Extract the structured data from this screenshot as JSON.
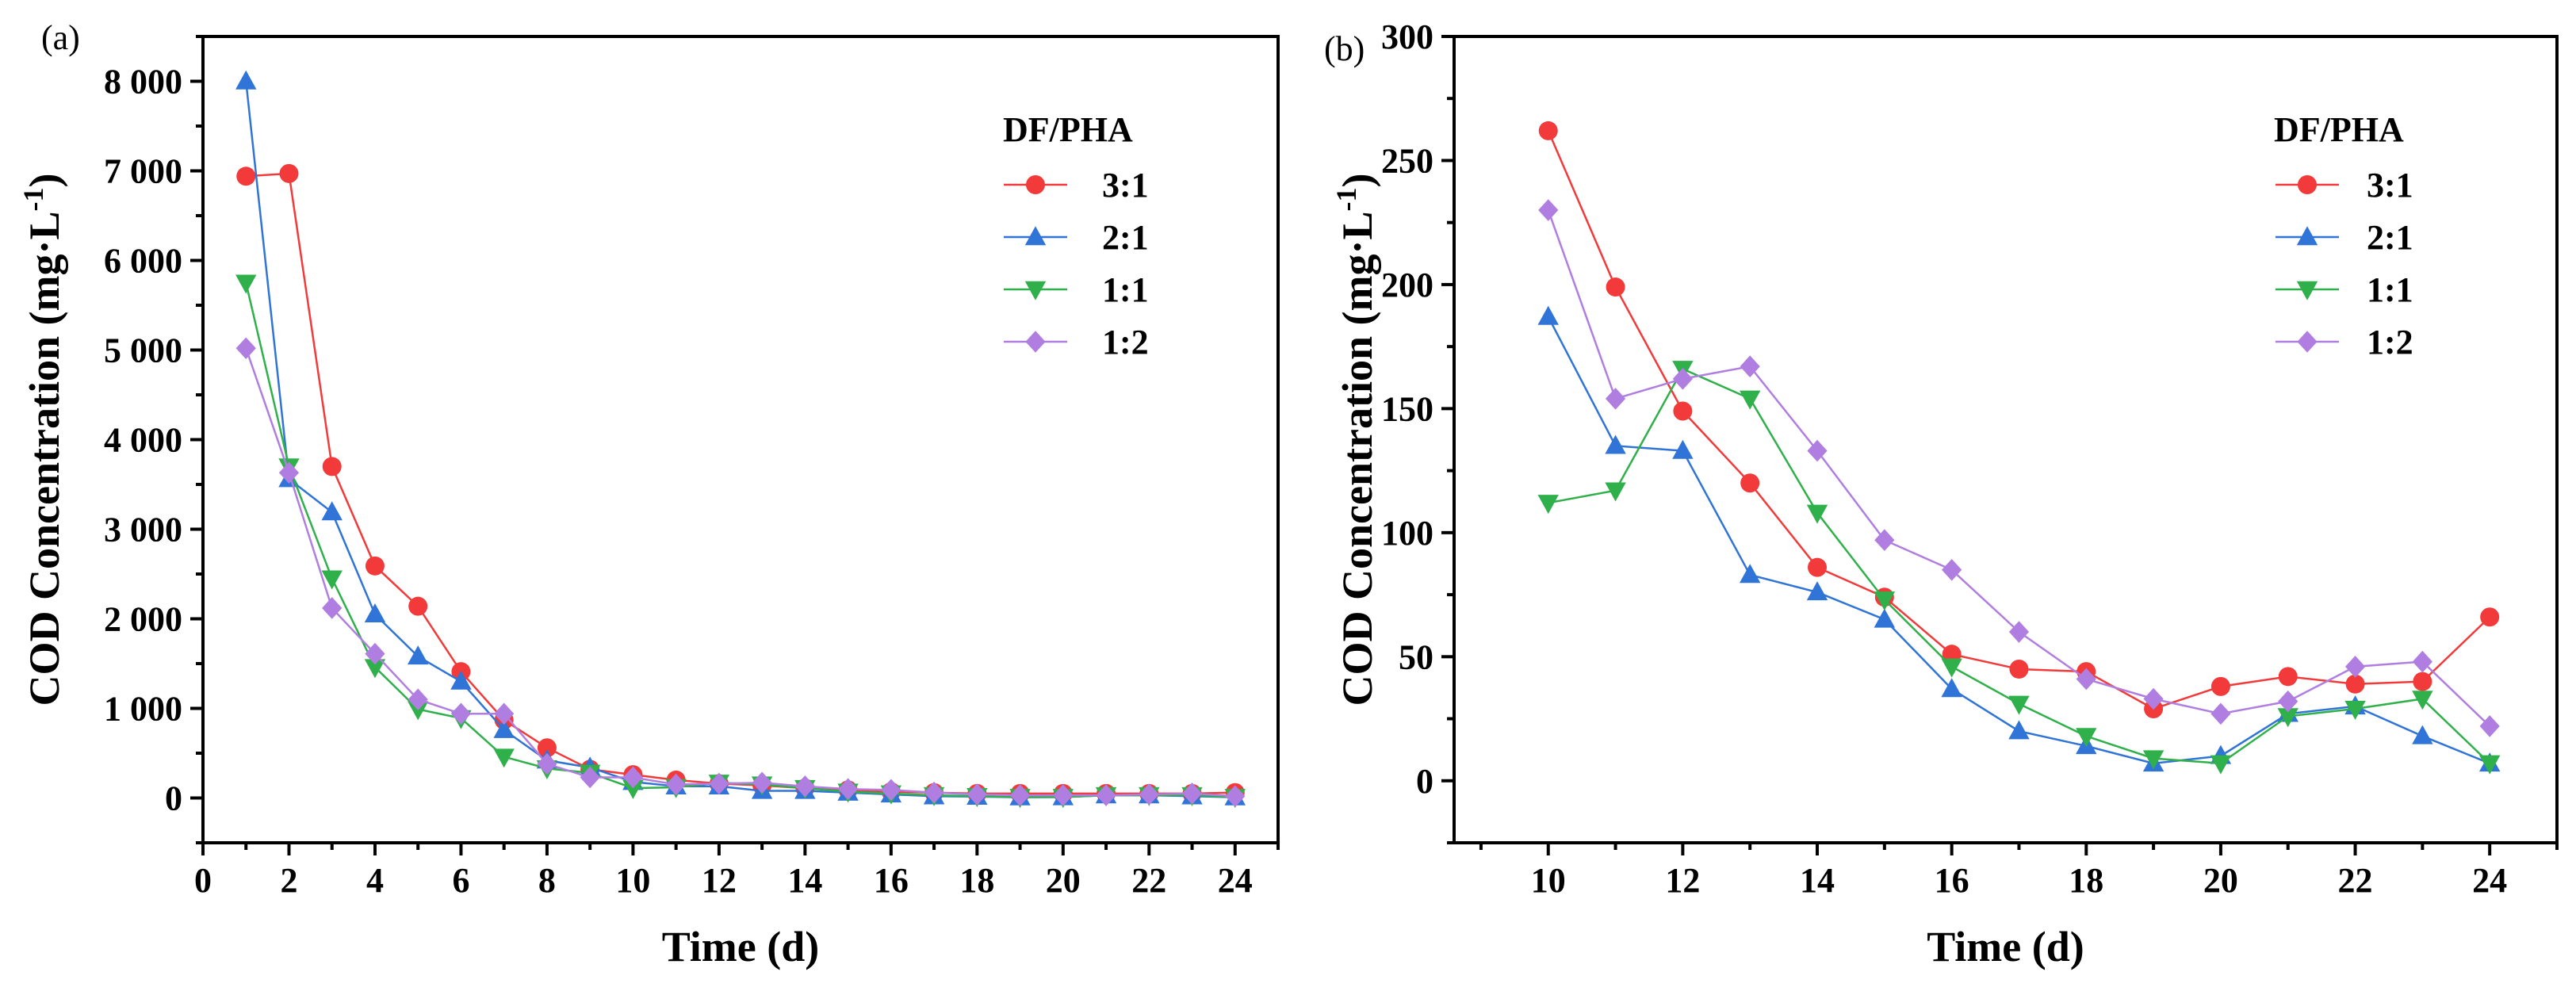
{
  "chart_data": [
    {
      "panel_label": "(a)",
      "type": "line",
      "xlabel": "Time (d)",
      "ylabel": "COD Concentration (mg·L",
      "ylabel_sup": "-1",
      "ylabel_close": ")",
      "xlim": [
        0,
        25
      ],
      "ylim": [
        -500,
        8500
      ],
      "xticks": [
        0,
        2,
        4,
        6,
        8,
        10,
        12,
        14,
        16,
        18,
        20,
        22,
        24
      ],
      "xtick_labels": [
        "0",
        "2",
        "4",
        "6",
        "8",
        "10",
        "12",
        "14",
        "16",
        "18",
        "20",
        "22",
        "24"
      ],
      "yticks": [
        0,
        1000,
        2000,
        3000,
        4000,
        5000,
        6000,
        7000,
        8000
      ],
      "ytick_labels": [
        "0",
        "1 000",
        "2 000",
        "3 000",
        "4 000",
        "5 000",
        "6 000",
        "7 000",
        "8 000"
      ],
      "legend_title": "DF/PHA",
      "legend_position": "top-right",
      "grid": false,
      "x": [
        1,
        2,
        3,
        4,
        5,
        6,
        7,
        8,
        9,
        10,
        11,
        12,
        13,
        14,
        15,
        16,
        17,
        18,
        19,
        20,
        21,
        22,
        23,
        24
      ],
      "series": [
        {
          "name": "3:1",
          "color": "#f23a3a",
          "marker": "circle",
          "values": [
            6940,
            6970,
            3700,
            2590,
            2140,
            1410,
            870,
            560,
            320,
            260,
            200,
            160,
            140,
            110,
            90,
            70,
            60,
            50,
            50,
            50,
            50,
            50,
            50,
            60
          ]
        },
        {
          "name": "2:1",
          "color": "#2f74d6",
          "marker": "triangle-up",
          "values": [
            8000,
            3560,
            3190,
            2050,
            1580,
            1300,
            760,
            420,
            340,
            180,
            130,
            130,
            80,
            80,
            60,
            40,
            20,
            15,
            8,
            10,
            30,
            30,
            20,
            8
          ]
        },
        {
          "name": "1:1",
          "color": "#2fb04a",
          "marker": "triangle-down",
          "values": [
            5750,
            3700,
            2450,
            1460,
            990,
            890,
            460,
            330,
            280,
            110,
            120,
            170,
            150,
            110,
            70,
            50,
            30,
            20,
            10,
            10,
            30,
            30,
            30,
            10
          ]
        },
        {
          "name": "1:2",
          "color": "#b07ee0",
          "marker": "diamond",
          "values": [
            5020,
            3630,
            2120,
            1610,
            1100,
            940,
            940,
            380,
            230,
            230,
            150,
            160,
            170,
            130,
            100,
            90,
            60,
            40,
            30,
            30,
            30,
            40,
            50,
            20
          ]
        }
      ]
    },
    {
      "panel_label": "(b)",
      "type": "line",
      "xlabel": "Time (d)",
      "ylabel": "COD Concentration (mg·L",
      "ylabel_sup": "-1",
      "ylabel_close": ")",
      "xlim": [
        8.6,
        25
      ],
      "ylim": [
        -25,
        300
      ],
      "xticks": [
        10,
        12,
        14,
        16,
        18,
        20,
        22,
        24
      ],
      "xtick_labels": [
        "10",
        "12",
        "14",
        "16",
        "18",
        "20",
        "22",
        "24"
      ],
      "yticks": [
        0,
        50,
        100,
        150,
        200,
        250,
        300
      ],
      "ytick_labels": [
        "0",
        "50",
        "100",
        "150",
        "200",
        "250",
        "300"
      ],
      "legend_title": "DF/PHA",
      "legend_position": "top-right",
      "grid": false,
      "x": [
        10,
        11,
        12,
        13,
        14,
        15,
        16,
        17,
        18,
        19,
        20,
        21,
        22,
        23,
        24
      ],
      "series": [
        {
          "name": "3:1",
          "color": "#f23a3a",
          "marker": "circle",
          "values": [
            262,
            199,
            149,
            120,
            86,
            74,
            51,
            45,
            44,
            29,
            38,
            42,
            39,
            40,
            66
          ]
        },
        {
          "name": "2:1",
          "color": "#2f74d6",
          "marker": "triangle-up",
          "values": [
            187,
            135,
            133,
            83,
            76,
            65,
            37,
            20,
            14,
            7,
            10,
            27,
            30,
            18,
            7
          ]
        },
        {
          "name": "1:1",
          "color": "#2fb04a",
          "marker": "triangle-down",
          "values": [
            112,
            117,
            166,
            154,
            108,
            73,
            46,
            31,
            18,
            9,
            7,
            26,
            29,
            33,
            7
          ]
        },
        {
          "name": "1:2",
          "color": "#b07ee0",
          "marker": "diamond",
          "values": [
            230,
            154,
            162,
            167,
            133,
            97,
            85,
            60,
            41,
            33,
            27,
            32,
            46,
            48,
            22
          ]
        }
      ]
    }
  ]
}
